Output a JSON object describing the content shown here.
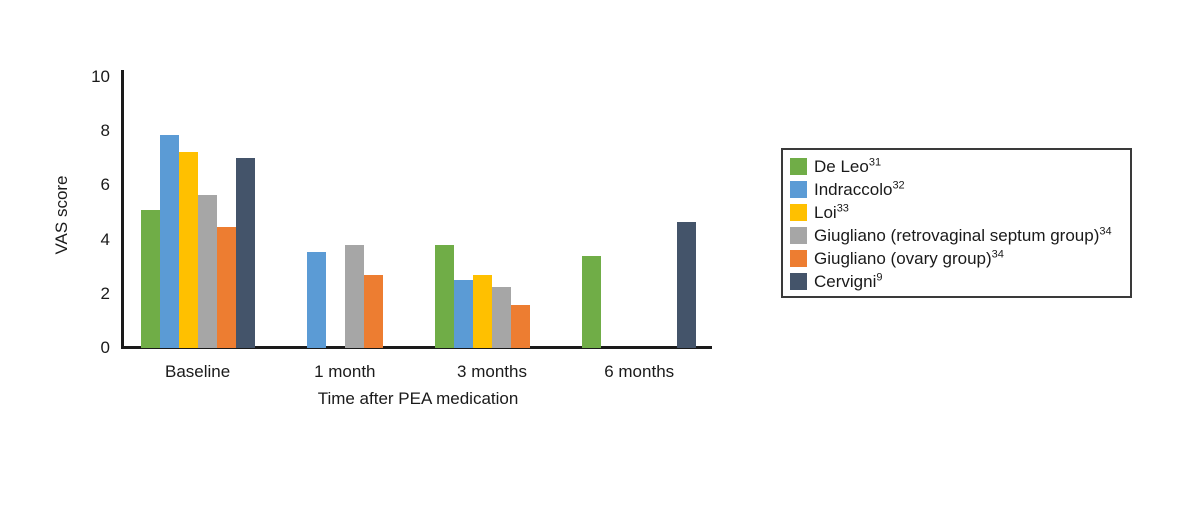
{
  "chart_data": {
    "type": "bar",
    "title": "",
    "xlabel": "Time after PEA medication",
    "ylabel": "VAS score",
    "ylim": [
      0,
      10
    ],
    "yticks": [
      0,
      2,
      4,
      6,
      8,
      10
    ],
    "categories": [
      "Baseline",
      "1 month",
      "3 months",
      "6 months"
    ],
    "series": [
      {
        "name": "De Leo",
        "ref": "31",
        "color": "#70ad47",
        "values": [
          5.1,
          null,
          3.8,
          3.4
        ]
      },
      {
        "name": "Indraccolo",
        "ref": "32",
        "color": "#5b9bd5",
        "values": [
          7.85,
          3.55,
          2.5,
          null
        ]
      },
      {
        "name": "Loi",
        "ref": "33",
        "color": "#ffc000",
        "values": [
          7.25,
          null,
          2.7,
          null
        ]
      },
      {
        "name": "Giugliano (retrovaginal septum group)",
        "ref": "34",
        "color": "#a6a6a6",
        "values": [
          5.65,
          3.8,
          2.25,
          null
        ]
      },
      {
        "name": "Giugliano (ovary group)",
        "ref": "34",
        "color": "#ed7d31",
        "values": [
          4.45,
          2.7,
          1.6,
          null
        ]
      },
      {
        "name": "Cervigni",
        "ref": "9",
        "color": "#44546a",
        "values": [
          7.0,
          null,
          null,
          4.65
        ]
      }
    ],
    "legend_position": "right",
    "grid": false,
    "axis_color": "#1a1a1a",
    "text_color": "#1a1a1a",
    "background_color": "#ffffff"
  }
}
